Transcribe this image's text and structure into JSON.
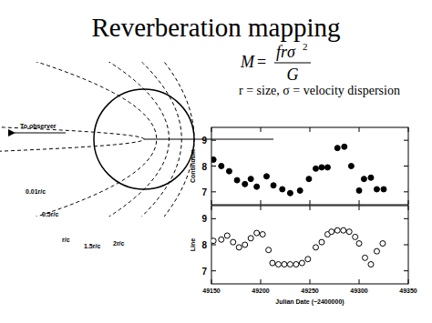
{
  "slide": {
    "title": "Reverberation mapping",
    "formula": {
      "lhs": "M",
      "equals": "=",
      "numerator": "frσ",
      "exponent": "2",
      "denominator": "G"
    },
    "definition": "r = size, σ = velocity dispersion",
    "diagram": {
      "arrow_label": "To observer",
      "isodelay": [
        {
          "value": 0.01,
          "label": "0.01r/c"
        },
        {
          "value": 0.5,
          "label": "0.5r/c"
        },
        {
          "value": 1,
          "label": "r/c"
        },
        {
          "value": 1.5,
          "label": "1.5r/c"
        },
        {
          "value": 2,
          "label": "2r/c"
        }
      ]
    }
  },
  "chart_data": [
    {
      "type": "scatter",
      "y_label": "Continuum",
      "x": [
        49152,
        49160,
        49168,
        49176,
        49184,
        49190,
        49196,
        49206,
        49213,
        49222,
        49230,
        49240,
        49249,
        49256,
        49262,
        49268,
        49278,
        49285,
        49292,
        49300,
        49305,
        49312,
        49318,
        49325
      ],
      "values": [
        8.25,
        8.0,
        7.8,
        7.45,
        7.3,
        7.5,
        7.2,
        7.6,
        7.25,
        7.1,
        6.95,
        7.05,
        7.5,
        7.9,
        7.95,
        7.95,
        8.7,
        8.75,
        8.0,
        7.05,
        7.5,
        7.55,
        7.1,
        7.1
      ],
      "xlim": [
        49150,
        49350
      ],
      "ylim": [
        6.5,
        9.5
      ],
      "xticks": [
        49150,
        49200,
        49250,
        49300,
        49350
      ],
      "yticks": [
        7,
        8,
        9
      ],
      "marker": "filled_circle",
      "color": "#000000",
      "tick_labels": "y"
    },
    {
      "type": "scatter",
      "y_label": "Line",
      "x_label": "Julian Date (−2400000)",
      "x": [
        49152,
        49160,
        49166,
        49172,
        49178,
        49184,
        49190,
        49196,
        49202,
        49208,
        49212,
        49218,
        49224,
        49230,
        49236,
        49242,
        49248,
        49256,
        49262,
        49268,
        49272,
        49278,
        49284,
        49290,
        49296,
        49300,
        49306,
        49312,
        49318,
        49324
      ],
      "values": [
        8.15,
        8.2,
        8.35,
        8.1,
        7.9,
        8.0,
        8.25,
        8.45,
        8.4,
        7.8,
        7.3,
        7.25,
        7.25,
        7.25,
        7.25,
        7.3,
        7.45,
        7.9,
        8.1,
        8.4,
        8.5,
        8.55,
        8.55,
        8.5,
        8.3,
        8.05,
        7.5,
        7.25,
        7.75,
        8.05
      ],
      "xlim": [
        49150,
        49350
      ],
      "ylim": [
        6.5,
        9.5
      ],
      "xticks": [
        49150,
        49200,
        49250,
        49300,
        49350
      ],
      "yticks": [
        7,
        8,
        9
      ],
      "marker": "open_circle",
      "color": "#000000"
    }
  ]
}
